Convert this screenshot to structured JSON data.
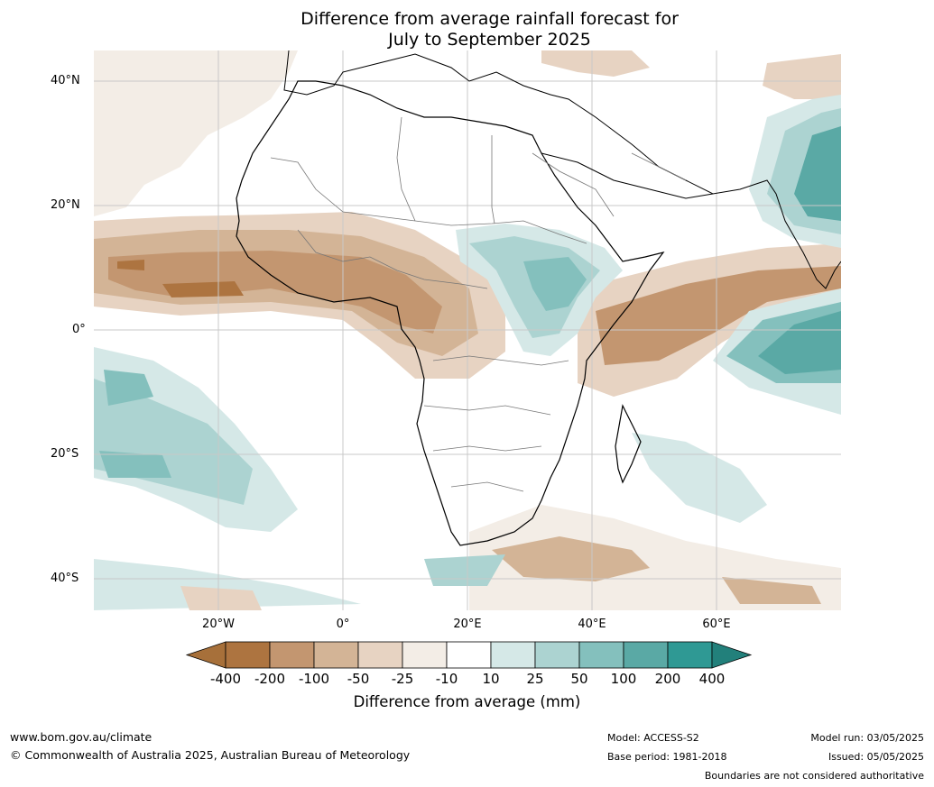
{
  "title_line1": "Difference from average rainfall forecast for",
  "title_line2": "July to September 2025",
  "lat_labels": [
    "40°N",
    "20°N",
    "0°",
    "20°S",
    "40°S"
  ],
  "lon_labels": [
    "20°W",
    "0°",
    "20°E",
    "40°E",
    "60°E"
  ],
  "colorbar": {
    "title": "Difference from average (mm)",
    "ticks": [
      "-400",
      "-200",
      "-100",
      "-50",
      "-25",
      "-10",
      "10",
      "25",
      "50",
      "100",
      "200",
      "400"
    ],
    "colors": [
      "#a7703a",
      "#ad7440",
      "#c39670",
      "#d3b496",
      "#e7d3c2",
      "#f3ede6",
      "#ffffff",
      "#d5e8e7",
      "#acd3d1",
      "#84c0bd",
      "#5aa9a5",
      "#2f9994",
      "#22807b"
    ]
  },
  "footer": {
    "url": "www.bom.gov.au/climate",
    "copyright": "© Commonwealth of Australia 2025, Australian Bureau of Meteorology",
    "model": "Model: ACCESS-S2",
    "base_period": "Base period: 1981-2018",
    "model_run": "Model run: 03/05/2025",
    "issued": "Issued: 05/05/2025",
    "disclaimer": "Boundaries are not considered authoritative"
  }
}
